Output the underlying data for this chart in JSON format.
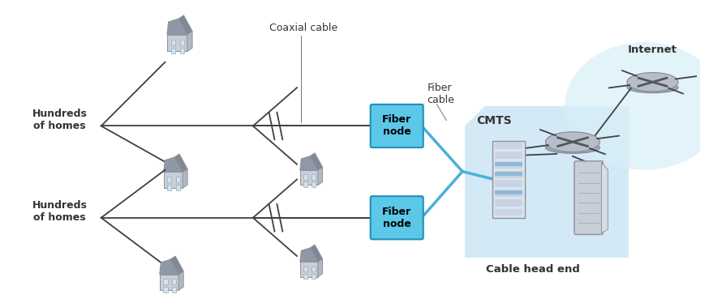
{
  "bg_color": "#ffffff",
  "fiber_node_color": "#5bc8e8",
  "fiber_node_text_color": "#000000",
  "line_color": "#404040",
  "fiber_line_color": "#4ab0d8",
  "text_color": "#333333",
  "cmts_bg_color": "#c0dff0",
  "internet_cloud_color": "#d8eef8",
  "labels": {
    "coaxial_cable": "Coaxial cable",
    "fiber_cable": "Fiber\ncable",
    "fiber_node": "Fiber\nnode",
    "hundreds1": "Hundreds\nof homes",
    "hundreds2": "Hundreds\nof homes",
    "cmts": "CMTS",
    "cable_head_end": "Cable head end",
    "internet": "Internet"
  }
}
